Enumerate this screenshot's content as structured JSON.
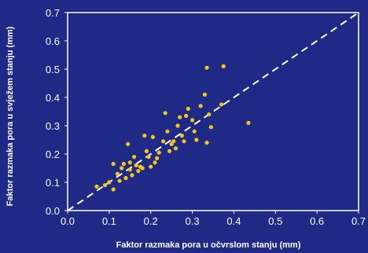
{
  "colors": {
    "background": "#1e2a86",
    "plot_border": "#ffffff",
    "point": "#f5c518",
    "reference_line": "#ffffff",
    "text": "#ffffff"
  },
  "chart_data": {
    "type": "scatter",
    "xlabel": "Faktor razmaka pora u očvrslom stanju (mm)",
    "ylabel": "Faktor razmaka pora u svježem stanju (mm)",
    "xlim": [
      0.0,
      0.7
    ],
    "ylim": [
      0.0,
      0.7
    ],
    "xticks": [
      "0.0",
      "0.1",
      "0.2",
      "0.3",
      "0.4",
      "0.5",
      "0.6",
      "0.7"
    ],
    "yticks": [
      "0.0",
      "0.1",
      "0.2",
      "0.3",
      "0.4",
      "0.5",
      "0.6",
      "0.7"
    ],
    "grid": false,
    "reference_line": {
      "style": "dashed",
      "from": [
        0.0,
        0.0
      ],
      "to": [
        0.7,
        0.7
      ]
    },
    "series": [
      {
        "points": [
          [
            0.07,
            0.085
          ],
          [
            0.09,
            0.09
          ],
          [
            0.1,
            0.1
          ],
          [
            0.11,
            0.075
          ],
          [
            0.11,
            0.165
          ],
          [
            0.12,
            0.13
          ],
          [
            0.125,
            0.105
          ],
          [
            0.13,
            0.15
          ],
          [
            0.135,
            0.165
          ],
          [
            0.14,
            0.115
          ],
          [
            0.145,
            0.235
          ],
          [
            0.15,
            0.145
          ],
          [
            0.15,
            0.17
          ],
          [
            0.155,
            0.125
          ],
          [
            0.16,
            0.19
          ],
          [
            0.165,
            0.16
          ],
          [
            0.17,
            0.14
          ],
          [
            0.175,
            0.155
          ],
          [
            0.18,
            0.15
          ],
          [
            0.185,
            0.265
          ],
          [
            0.19,
            0.21
          ],
          [
            0.195,
            0.19
          ],
          [
            0.2,
            0.155
          ],
          [
            0.205,
            0.26
          ],
          [
            0.21,
            0.17
          ],
          [
            0.215,
            0.185
          ],
          [
            0.22,
            0.205
          ],
          [
            0.23,
            0.245
          ],
          [
            0.235,
            0.345
          ],
          [
            0.24,
            0.28
          ],
          [
            0.245,
            0.21
          ],
          [
            0.25,
            0.235
          ],
          [
            0.255,
            0.245
          ],
          [
            0.26,
            0.22
          ],
          [
            0.265,
            0.3
          ],
          [
            0.27,
            0.33
          ],
          [
            0.275,
            0.265
          ],
          [
            0.28,
            0.245
          ],
          [
            0.285,
            0.335
          ],
          [
            0.29,
            0.36
          ],
          [
            0.3,
            0.32
          ],
          [
            0.305,
            0.28
          ],
          [
            0.31,
            0.25
          ],
          [
            0.32,
            0.37
          ],
          [
            0.33,
            0.41
          ],
          [
            0.335,
            0.24
          ],
          [
            0.335,
            0.505
          ],
          [
            0.34,
            0.34
          ],
          [
            0.345,
            0.295
          ],
          [
            0.37,
            0.375
          ],
          [
            0.375,
            0.51
          ],
          [
            0.435,
            0.31
          ]
        ]
      }
    ]
  }
}
